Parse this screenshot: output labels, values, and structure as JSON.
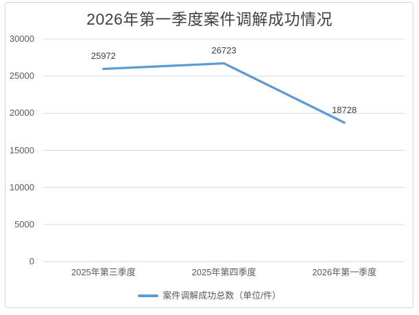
{
  "chart_data": {
    "type": "line",
    "title": "2026年第一季度案件调解成功情况",
    "categories": [
      "2025年第三季度",
      "2025年第四季度",
      "2026年第一季度"
    ],
    "series": [
      {
        "name": "案件调解成功总数（单位/件）",
        "values": [
          25972,
          26723,
          18728
        ],
        "color": "#5B9BD5"
      }
    ],
    "data_labels_shown": true,
    "xlabel": "",
    "ylabel": "",
    "ylim": [
      0,
      30000
    ],
    "yticks": [
      0,
      5000,
      10000,
      15000,
      20000,
      25000,
      30000
    ],
    "grid": true,
    "grid_color": "#D9D9D9",
    "axis_text_color": "#595959",
    "data_label_color": "#404040",
    "title_color": "#404040",
    "frame_border_color": "#D7D7D7",
    "legend_position": "bottom"
  }
}
